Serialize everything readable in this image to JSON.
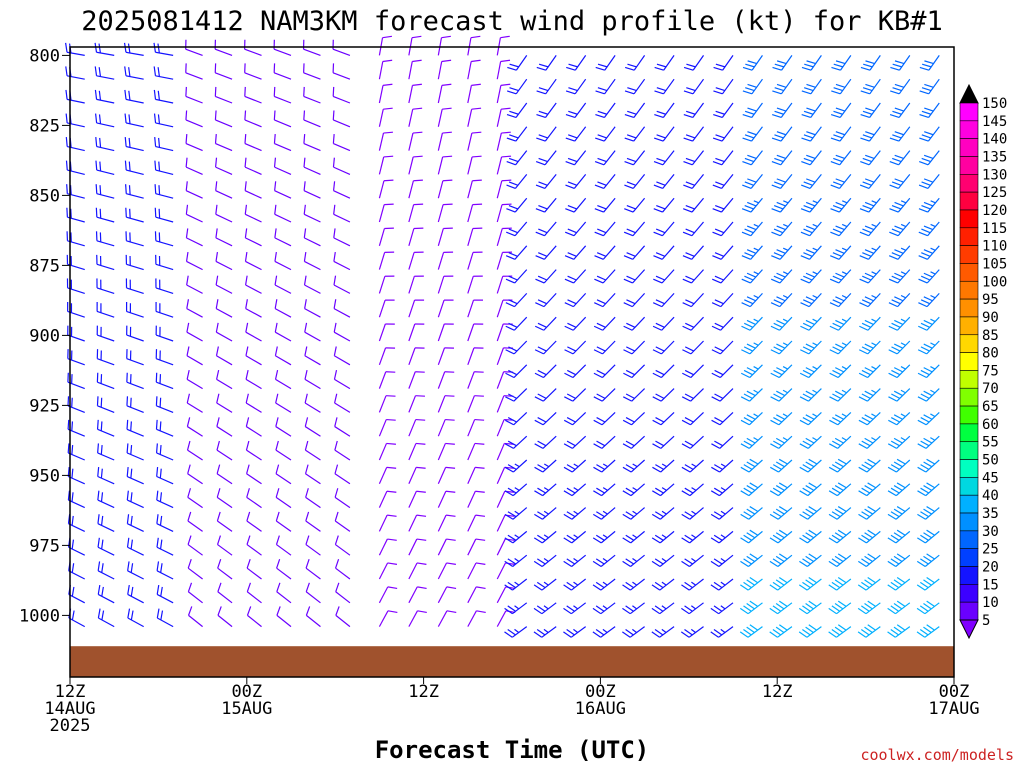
{
  "chart_data": {
    "type": "wind_barb_profile",
    "title": "2025081412 NAM3KM forecast wind profile (kt) for KB#1",
    "xlabel": "Forecast Time (UTC)",
    "ylabel": "",
    "credit": "coolwx.com/models",
    "x_ticks": [
      {
        "lines": [
          "12Z",
          "14AUG",
          "2025"
        ]
      },
      {
        "lines": [
          "00Z",
          "15AUG"
        ]
      },
      {
        "lines": [
          "12Z"
        ]
      },
      {
        "lines": [
          "00Z",
          "16AUG"
        ]
      },
      {
        "lines": [
          "12Z"
        ]
      },
      {
        "lines": [
          "00Z",
          "17AUG"
        ]
      }
    ],
    "x_range_hours": [
      0,
      60
    ],
    "y_ticks": [
      800,
      825,
      850,
      875,
      900,
      925,
      950,
      975,
      1000
    ],
    "y_range_hPa": [
      797,
      1022
    ],
    "y_inverted": true,
    "colorbar": {
      "levels": [
        5,
        10,
        15,
        20,
        25,
        30,
        35,
        40,
        45,
        50,
        55,
        60,
        65,
        70,
        75,
        80,
        85,
        90,
        95,
        100,
        105,
        110,
        115,
        120,
        125,
        130,
        135,
        140,
        145,
        150
      ],
      "colors": [
        "#8000ff",
        "#6a00ff",
        "#3c00ff",
        "#1414ff",
        "#0040ff",
        "#0066ff",
        "#0090ff",
        "#00b0ff",
        "#00d8e0",
        "#00ffc0",
        "#00ff80",
        "#00ff40",
        "#40ff00",
        "#80ff00",
        "#c0ff00",
        "#ffff00",
        "#ffd800",
        "#ffb000",
        "#ff9000",
        "#ff7800",
        "#ff5a00",
        "#ff3c00",
        "#ff2000",
        "#ff0000",
        "#ff0040",
        "#ff0070",
        "#ff00a0",
        "#ff00c0",
        "#ff00e0",
        "#ff00ff"
      ],
      "under_color": "#8000ff",
      "over_color": "#000000"
    },
    "terrain_color": "#a0522d",
    "terrain_pressure_hPa": 1011,
    "barb_columns": 30,
    "barb_levels_hPa": [
      800,
      808.5,
      817,
      825.5,
      834,
      842.5,
      851,
      859.5,
      868,
      876.5,
      885,
      893.5,
      902,
      910.5,
      919,
      927.5,
      936,
      944.5,
      953,
      961.5,
      970,
      978.5,
      987,
      995.5,
      1004
    ],
    "wind_summary": [
      {
        "hours": [
          0,
          8
        ],
        "direction_deg": 290,
        "speed_kt": 20
      },
      {
        "hours": [
          8,
          20
        ],
        "direction_deg": 300,
        "speed_kt": 10
      },
      {
        "hours": [
          20,
          30
        ],
        "direction_deg": 20,
        "speed_kt": 8
      },
      {
        "hours": [
          30,
          45
        ],
        "direction_deg": 225,
        "speed_kt": 20
      },
      {
        "hours": [
          45,
          60
        ],
        "direction_deg": 225,
        "speed_kt": 30
      }
    ]
  }
}
